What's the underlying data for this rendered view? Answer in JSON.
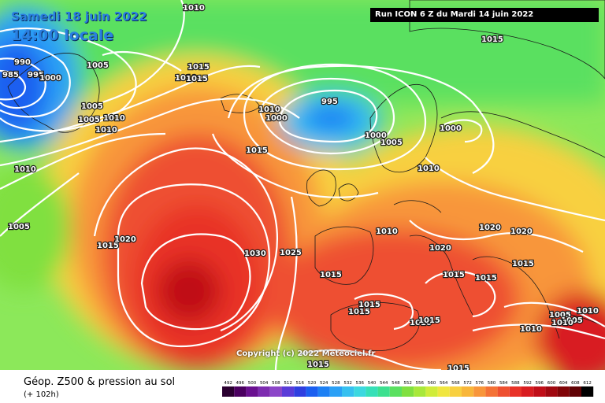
{
  "header": {
    "date": "Samedi 18 juin 2022",
    "time": "14:00 locale",
    "run_info": "Run ICON 6 Z du Mardi 14 juin 2022"
  },
  "map": {
    "copyright": "Copyright (c) 2022 Meteociel.fr",
    "isobar_labels": [
      {
        "id": "a",
        "text": "1010"
      },
      {
        "id": "b",
        "text": "990"
      },
      {
        "id": "c",
        "text": "985"
      },
      {
        "id": "d",
        "text": "995"
      },
      {
        "id": "e",
        "text": "1000"
      },
      {
        "id": "f",
        "text": "1005"
      },
      {
        "id": "g",
        "text": "1015"
      },
      {
        "id": "h",
        "text": "1010"
      },
      {
        "id": "i",
        "text": "1015"
      },
      {
        "id": "j",
        "text": "1005"
      },
      {
        "id": "k",
        "text": "1010"
      },
      {
        "id": "l",
        "text": "1005"
      },
      {
        "id": "m",
        "text": "1010"
      },
      {
        "id": "n",
        "text": "1010"
      },
      {
        "id": "o",
        "text": "1000"
      },
      {
        "id": "p",
        "text": "995"
      },
      {
        "id": "q",
        "text": "1000"
      },
      {
        "id": "r",
        "text": "1005"
      },
      {
        "id": "s",
        "text": "1000"
      },
      {
        "id": "t",
        "text": "1015"
      },
      {
        "id": "u",
        "text": "1015"
      },
      {
        "id": "v",
        "text": "1010"
      },
      {
        "id": "w",
        "text": "1010"
      },
      {
        "id": "x",
        "text": "1005"
      },
      {
        "id": "y",
        "text": "1015"
      },
      {
        "id": "z",
        "text": "1020"
      },
      {
        "id": "aa",
        "text": "1030"
      },
      {
        "id": "ab",
        "text": "1025"
      },
      {
        "id": "ac",
        "text": "1010"
      },
      {
        "id": "ad",
        "text": "1015"
      },
      {
        "id": "ae",
        "text": "1020"
      },
      {
        "id": "af",
        "text": "1020"
      },
      {
        "id": "ag",
        "text": "1020"
      },
      {
        "id": "ah",
        "text": "1015"
      },
      {
        "id": "ai",
        "text": "1015"
      },
      {
        "id": "aj",
        "text": "1015"
      },
      {
        "id": "ak",
        "text": "1015"
      },
      {
        "id": "al",
        "text": "1015"
      },
      {
        "id": "am",
        "text": "1010"
      },
      {
        "id": "an",
        "text": "1015"
      },
      {
        "id": "ao",
        "text": "1010"
      },
      {
        "id": "ap",
        "text": "1005"
      },
      {
        "id": "aq",
        "text": "1010"
      },
      {
        "id": "ar",
        "text": "1005"
      },
      {
        "id": "as",
        "text": "1010"
      },
      {
        "id": "at",
        "text": "1015"
      },
      {
        "id": "au",
        "text": "1015"
      }
    ]
  },
  "legend": {
    "title": "Géop. Z500 & pression au sol",
    "subtitle": "(+ 102h)",
    "scale_values": [
      "492",
      "496",
      "500",
      "504",
      "508",
      "512",
      "516",
      "520",
      "524",
      "528",
      "532",
      "536",
      "540",
      "544",
      "548",
      "552",
      "556",
      "560",
      "564",
      "568",
      "572",
      "576",
      "580",
      "584",
      "588",
      "592",
      "596",
      "600",
      "604",
      "608",
      "612"
    ],
    "scale_colors": [
      "#2a0030",
      "#4b0060",
      "#6a1090",
      "#7d2cb0",
      "#8c46c8",
      "#5a3cd8",
      "#2f3fe0",
      "#1b5ff0",
      "#1d80f4",
      "#2aa0f6",
      "#36c0f0",
      "#3cd8e0",
      "#36e0b8",
      "#3ce090",
      "#5ae060",
      "#80e040",
      "#a8e83a",
      "#d0ec3a",
      "#f0e640",
      "#f8d040",
      "#f8b63a",
      "#f8963a",
      "#f47236",
      "#ee5030",
      "#e83228",
      "#d81c20",
      "#c00e18",
      "#a00810",
      "#800408",
      "#600204",
      "#000000"
    ]
  }
}
